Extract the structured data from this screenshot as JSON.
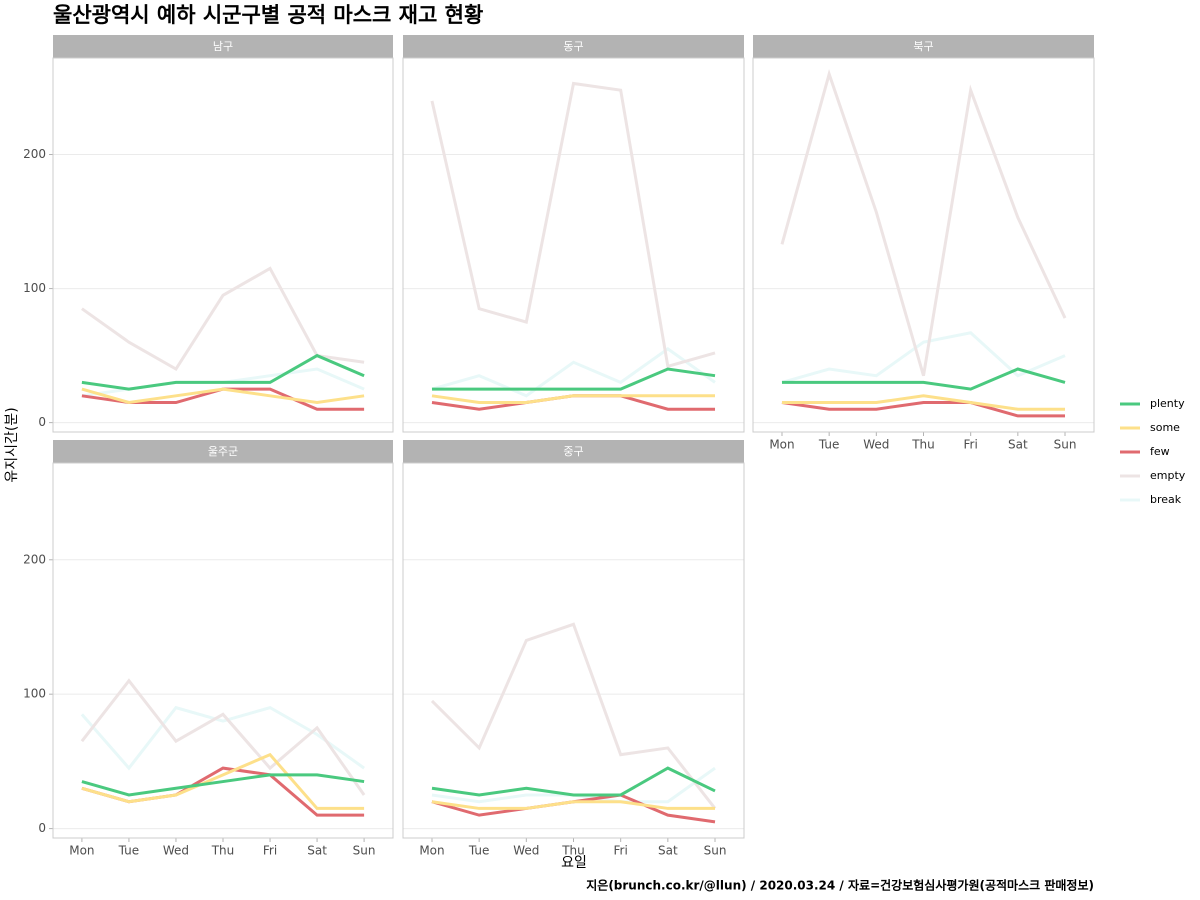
{
  "title": "울산광역시 예하 시군구별 공적 마스크 재고 현황",
  "x_label": "요일",
  "y_label": "유지시간(분)",
  "caption": "지은(brunch.co.kr/@llun) / 2020.03.24 / 자료=건강보험심사평가원(공적마스크 판매정보)",
  "chart_data": [
    {
      "type": "line",
      "title": "남구",
      "categories": [
        "Mon",
        "Tue",
        "Wed",
        "Thu",
        "Fri",
        "Sat",
        "Sun"
      ],
      "ylim": [
        -7,
        272
      ],
      "yticks": [
        0,
        100,
        200
      ],
      "grid": true,
      "series": [
        {
          "name": "plenty",
          "color": "#4ac97f",
          "values": [
            30,
            25,
            30,
            30,
            30,
            50,
            35
          ]
        },
        {
          "name": "some",
          "color": "#fde08a",
          "values": [
            25,
            15,
            20,
            25,
            20,
            15,
            20
          ]
        },
        {
          "name": "few",
          "color": "#e06a6f",
          "values": [
            20,
            15,
            15,
            25,
            25,
            10,
            10
          ]
        },
        {
          "name": "empty",
          "color": "#ede4e4",
          "values": [
            85,
            60,
            40,
            95,
            115,
            50,
            45
          ]
        },
        {
          "name": "break",
          "color": "#e8f8f8",
          "values": [
            20,
            25,
            30,
            30,
            35,
            40,
            25
          ]
        }
      ]
    },
    {
      "type": "line",
      "title": "동구",
      "categories": [
        "Mon",
        "Tue",
        "Wed",
        "Thu",
        "Fri",
        "Sat",
        "Sun"
      ],
      "ylim": [
        -7,
        272
      ],
      "yticks": [
        0,
        100,
        200
      ],
      "grid": true,
      "series": [
        {
          "name": "plenty",
          "color": "#4ac97f",
          "values": [
            25,
            25,
            25,
            25,
            25,
            40,
            35
          ]
        },
        {
          "name": "some",
          "color": "#fde08a",
          "values": [
            20,
            15,
            15,
            20,
            20,
            20,
            20
          ]
        },
        {
          "name": "few",
          "color": "#e06a6f",
          "values": [
            15,
            10,
            15,
            20,
            20,
            10,
            10
          ]
        },
        {
          "name": "empty",
          "color": "#ede4e4",
          "values": [
            240,
            85,
            75,
            253,
            248,
            42,
            52
          ]
        },
        {
          "name": "break",
          "color": "#e8f8f8",
          "values": [
            25,
            35,
            20,
            45,
            30,
            55,
            30
          ]
        }
      ]
    },
    {
      "type": "line",
      "title": "북구",
      "categories": [
        "Mon",
        "Tue",
        "Wed",
        "Thu",
        "Fri",
        "Sat",
        "Sun"
      ],
      "ylim": [
        -7,
        272
      ],
      "yticks": [
        0,
        100,
        200
      ],
      "grid": true,
      "series": [
        {
          "name": "plenty",
          "color": "#4ac97f",
          "values": [
            30,
            30,
            30,
            30,
            25,
            40,
            30
          ]
        },
        {
          "name": "some",
          "color": "#fde08a",
          "values": [
            15,
            15,
            15,
            20,
            15,
            10,
            10
          ]
        },
        {
          "name": "few",
          "color": "#e06a6f",
          "values": [
            15,
            10,
            10,
            15,
            15,
            5,
            5
          ]
        },
        {
          "name": "empty",
          "color": "#ede4e4",
          "values": [
            133,
            260,
            157,
            35,
            248,
            153,
            78
          ]
        },
        {
          "name": "break",
          "color": "#e8f8f8",
          "values": [
            30,
            40,
            35,
            60,
            67,
            35,
            50
          ]
        }
      ]
    },
    {
      "type": "line",
      "title": "울주군",
      "categories": [
        "Mon",
        "Tue",
        "Wed",
        "Thu",
        "Fri",
        "Sat",
        "Sun"
      ],
      "ylim": [
        -7,
        272
      ],
      "yticks": [
        0,
        100,
        200
      ],
      "grid": true,
      "series": [
        {
          "name": "plenty",
          "color": "#4ac97f",
          "values": [
            35,
            25,
            30,
            35,
            40,
            40,
            35
          ]
        },
        {
          "name": "some",
          "color": "#fde08a",
          "values": [
            30,
            20,
            25,
            40,
            55,
            15,
            15
          ]
        },
        {
          "name": "few",
          "color": "#e06a6f",
          "values": [
            30,
            20,
            25,
            45,
            40,
            10,
            10
          ]
        },
        {
          "name": "empty",
          "color": "#ede4e4",
          "values": [
            65,
            110,
            65,
            85,
            45,
            75,
            25
          ]
        },
        {
          "name": "break",
          "color": "#e8f8f8",
          "values": [
            85,
            45,
            90,
            80,
            90,
            70,
            45
          ]
        }
      ]
    },
    {
      "type": "line",
      "title": "중구",
      "categories": [
        "Mon",
        "Tue",
        "Wed",
        "Thu",
        "Fri",
        "Sat",
        "Sun"
      ],
      "ylim": [
        -7,
        272
      ],
      "yticks": [
        0,
        100,
        200
      ],
      "grid": true,
      "series": [
        {
          "name": "plenty",
          "color": "#4ac97f",
          "values": [
            30,
            25,
            30,
            25,
            25,
            45,
            28
          ]
        },
        {
          "name": "some",
          "color": "#fde08a",
          "values": [
            20,
            15,
            15,
            20,
            20,
            15,
            15
          ]
        },
        {
          "name": "few",
          "color": "#e06a6f",
          "values": [
            20,
            10,
            15,
            20,
            25,
            10,
            5
          ]
        },
        {
          "name": "empty",
          "color": "#ede4e4",
          "values": [
            95,
            60,
            140,
            152,
            55,
            60,
            15
          ]
        },
        {
          "name": "break",
          "color": "#e8f8f8",
          "values": [
            25,
            20,
            25,
            25,
            20,
            20,
            45
          ]
        }
      ]
    }
  ]
}
